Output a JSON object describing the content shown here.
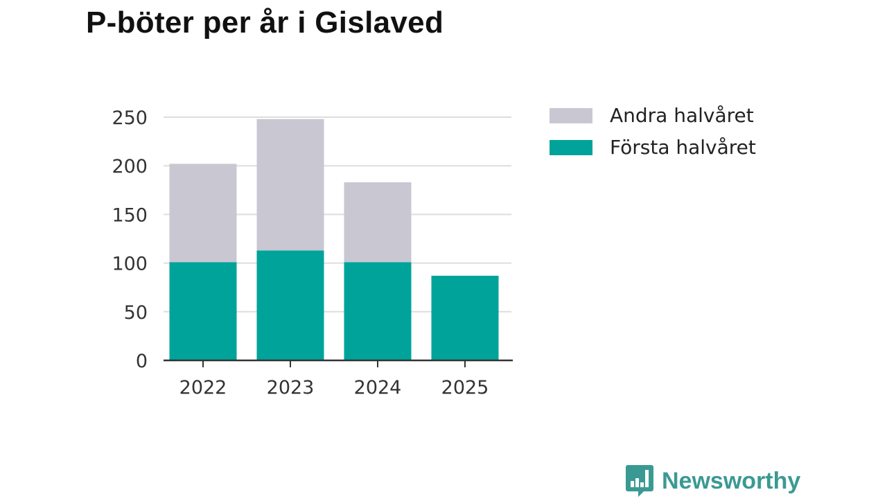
{
  "chart_data": {
    "type": "bar",
    "stacked": true,
    "title": "P-böter per år i Gislaved",
    "categories": [
      "2022",
      "2023",
      "2024",
      "2025"
    ],
    "series": [
      {
        "name": "Första halvåret",
        "color": "#00a39a",
        "values": [
          101,
          113,
          101,
          87
        ]
      },
      {
        "name": "Andra halvåret",
        "color": "#c8c7d2",
        "values": [
          101,
          135,
          82,
          0
        ]
      }
    ],
    "yticks": [
      0,
      50,
      100,
      150,
      200,
      250
    ],
    "ylim": [
      0,
      250
    ],
    "xlabel": "",
    "ylabel": "",
    "grid": true,
    "legend": "right",
    "legend_order": [
      "Andra halvåret",
      "Första halvåret"
    ]
  },
  "branding": {
    "logo_text": "Newsworthy"
  }
}
